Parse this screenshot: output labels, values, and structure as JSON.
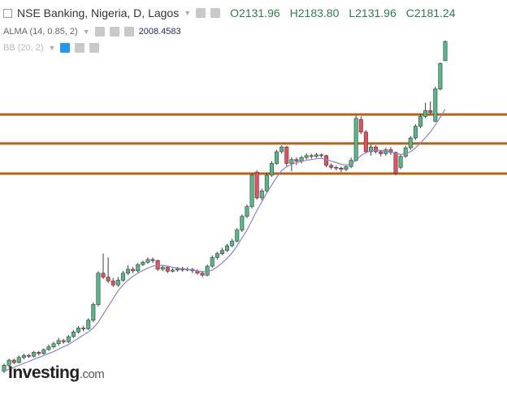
{
  "header": {
    "title": "NSE Banking, Nigeria, D, Lagos",
    "ohlc": [
      "O2131.96",
      "H2183.80",
      "L2131.96",
      "C2181.24"
    ],
    "indicators": [
      "ALMA (14, 0.85, 2)",
      "BB (20, 2)"
    ]
  },
  "watermark": {
    "brand": "Investing",
    "suffix": ".com"
  },
  "chart_data": {
    "type": "candlestick",
    "ylim": [
      1246,
      2287
    ],
    "up_color": "#53b987",
    "down_color": "#eb4d5c",
    "border_color": "#3d3d3d",
    "open": [
      1340,
      1355,
      1368,
      1362,
      1375,
      1380,
      1378,
      1388,
      1385,
      1395,
      1402,
      1410,
      1418,
      1415,
      1428,
      1440,
      1450,
      1448,
      1470,
      1510,
      1590,
      1580,
      1570,
      1560,
      1572,
      1590,
      1600,
      1596,
      1612,
      1618,
      1625,
      1622,
      1600,
      1605,
      1595,
      1598,
      1602,
      1598,
      1600,
      1596,
      1590,
      1585,
      1608,
      1630,
      1640,
      1648,
      1660,
      1672,
      1700,
      1735,
      1760,
      1848,
      1782,
      1800,
      1840,
      1870,
      1900,
      1912,
      1870,
      1880,
      1876,
      1885,
      1890,
      1888,
      1892,
      1890,
      1865,
      1860,
      1858,
      1855,
      1862,
      1878,
      1982,
      1950,
      1900,
      1912,
      1900,
      1895,
      1905,
      1898,
      1860,
      1888,
      1910,
      1935,
      1965,
      1990,
      2005,
      1978,
      2060,
      2131.96
    ],
    "high": [
      1360,
      1372,
      1372,
      1380,
      1385,
      1384,
      1392,
      1392,
      1398,
      1408,
      1415,
      1425,
      1422,
      1432,
      1445,
      1455,
      1456,
      1475,
      1515,
      1595,
      1640,
      1630,
      1578,
      1580,
      1596,
      1610,
      1606,
      1616,
      1622,
      1630,
      1630,
      1625,
      1610,
      1608,
      1603,
      1606,
      1606,
      1605,
      1603,
      1600,
      1596,
      1612,
      1635,
      1645,
      1655,
      1665,
      1678,
      1705,
      1740,
      1765,
      1845,
      1852,
      1806,
      1846,
      1876,
      1905,
      1916,
      1915,
      1886,
      1885,
      1890,
      1896,
      1895,
      1897,
      1895,
      1892,
      1870,
      1864,
      1862,
      1866,
      1885,
      1992,
      1990,
      1955,
      1918,
      1916,
      1905,
      1910,
      1912,
      1900,
      1893,
      1915,
      1940,
      1970,
      1996,
      2025,
      2028,
      2066,
      2128,
      2183.8
    ],
    "low": [
      1335,
      1350,
      1358,
      1360,
      1370,
      1374,
      1375,
      1380,
      1382,
      1392,
      1398,
      1405,
      1410,
      1412,
      1425,
      1436,
      1442,
      1445,
      1465,
      1505,
      1575,
      1565,
      1555,
      1555,
      1568,
      1585,
      1590,
      1592,
      1608,
      1614,
      1616,
      1596,
      1595,
      1590,
      1592,
      1594,
      1594,
      1595,
      1590,
      1586,
      1580,
      1582,
      1604,
      1625,
      1636,
      1644,
      1656,
      1668,
      1695,
      1730,
      1755,
      1778,
      1776,
      1796,
      1836,
      1866,
      1895,
      1862,
      1850,
      1866,
      1870,
      1880,
      1882,
      1884,
      1885,
      1860,
      1855,
      1852,
      1848,
      1850,
      1858,
      1875,
      1945,
      1895,
      1890,
      1895,
      1888,
      1890,
      1892,
      1840,
      1855,
      1884,
      1905,
      1930,
      1960,
      1985,
      1995,
      1975,
      2056,
      2131.96
    ],
    "close": [
      1355,
      1368,
      1362,
      1375,
      1380,
      1378,
      1388,
      1385,
      1395,
      1402,
      1410,
      1418,
      1415,
      1428,
      1440,
      1450,
      1448,
      1470,
      1510,
      1590,
      1580,
      1570,
      1560,
      1572,
      1590,
      1600,
      1596,
      1612,
      1618,
      1625,
      1622,
      1600,
      1605,
      1595,
      1598,
      1602,
      1598,
      1600,
      1596,
      1590,
      1585,
      1608,
      1630,
      1640,
      1648,
      1660,
      1672,
      1700,
      1735,
      1760,
      1840,
      1782,
      1800,
      1840,
      1870,
      1900,
      1912,
      1870,
      1880,
      1876,
      1885,
      1890,
      1888,
      1892,
      1890,
      1865,
      1860,
      1858,
      1855,
      1862,
      1878,
      1985,
      1950,
      1900,
      1912,
      1900,
      1895,
      1905,
      1898,
      1845,
      1888,
      1910,
      1935,
      1965,
      1990,
      2005,
      2000,
      2060,
      2125,
      2181.24
    ],
    "alma": {
      "color": "#8c84c6",
      "values": [
        1340,
        1345,
        1350,
        1355,
        1360,
        1365,
        1370,
        1375,
        1380,
        1385,
        1390,
        1396,
        1402,
        1408,
        1416,
        1424,
        1432,
        1440,
        1450,
        1465,
        1485,
        1505,
        1525,
        1545,
        1560,
        1572,
        1582,
        1590,
        1597,
        1603,
        1608,
        1610,
        1610,
        1608,
        1605,
        1603,
        1601,
        1600,
        1598,
        1596,
        1594,
        1594,
        1598,
        1606,
        1616,
        1628,
        1642,
        1660,
        1680,
        1700,
        1725,
        1750,
        1772,
        1795,
        1815,
        1835,
        1852,
        1862,
        1868,
        1872,
        1875,
        1878,
        1880,
        1882,
        1883,
        1880,
        1876,
        1872,
        1868,
        1866,
        1868,
        1878,
        1890,
        1898,
        1902,
        1904,
        1903,
        1902,
        1900,
        1895,
        1893,
        1895,
        1900,
        1910,
        1922,
        1936,
        1950,
        1968,
        1988,
        2008.4583
      ]
    },
    "levels": {
      "color": "#b5621d",
      "values": [
        1995,
        1921,
        1844
      ]
    }
  }
}
